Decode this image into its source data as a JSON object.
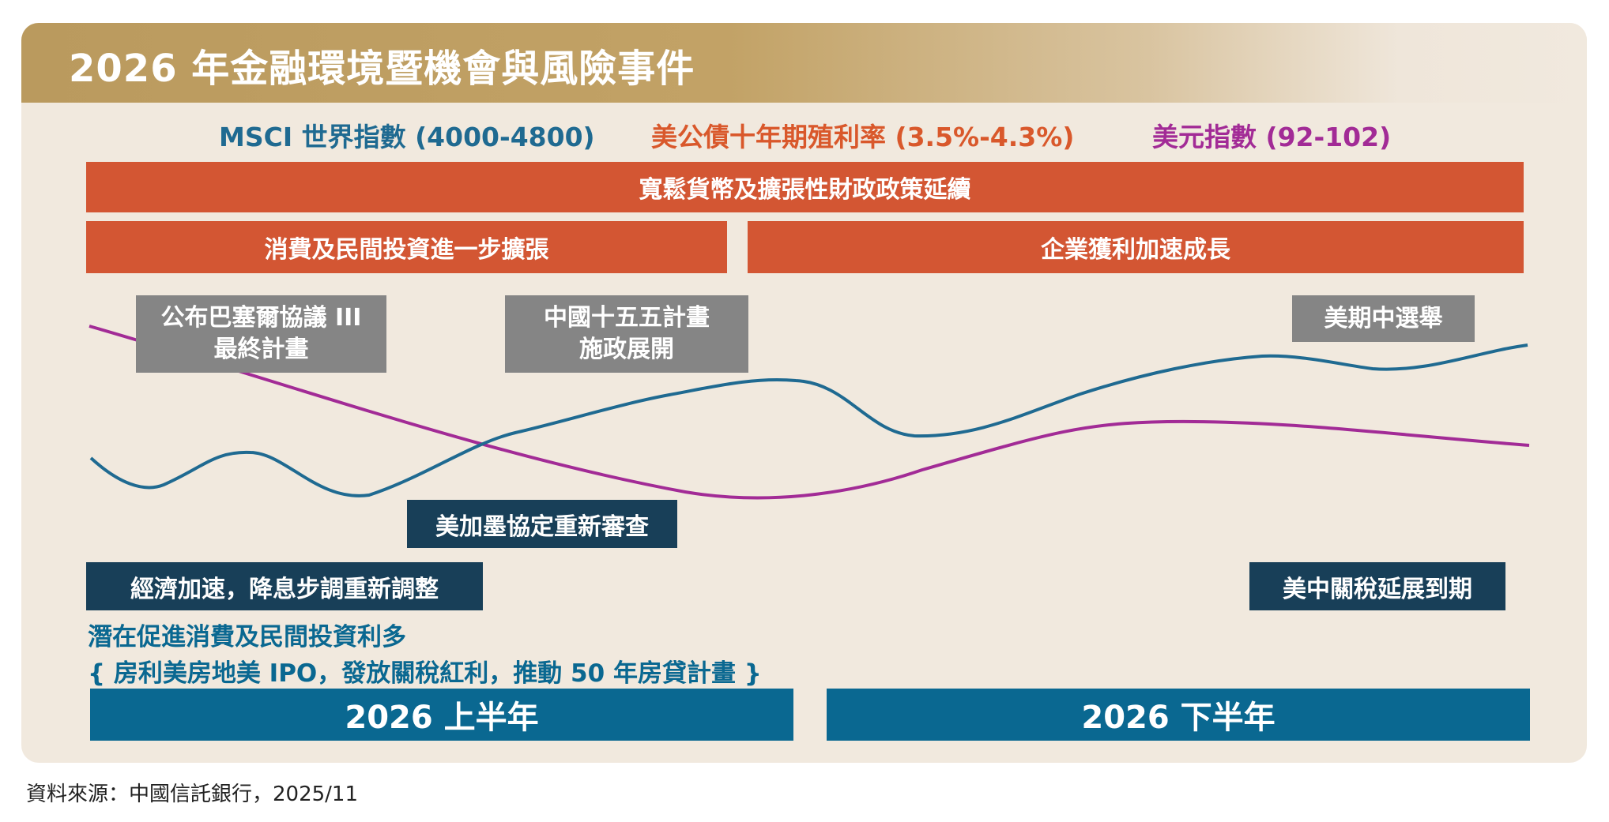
{
  "title": "2026 年金融環境暨機會與風險事件",
  "legend": [
    {
      "label": "MSCI 世界指數 (4000-4800)",
      "color": "#1f6a91"
    },
    {
      "label": "美公債十年期殖利率 (3.5%-4.3%)",
      "color": "#d9582b"
    },
    {
      "label": "美元指數 (92-102)",
      "color": "#a22b96"
    }
  ],
  "banners": {
    "top": "寬鬆貨幣及擴張性財政政策延續",
    "left": "消費及民間投資進一步擴張",
    "right": "企業獲利加速成長"
  },
  "events": {
    "basel_line1": "公布巴塞爾協議 III",
    "basel_line2": "最終計畫",
    "plan_line1": "中國十五五計畫",
    "plan_line2": "施政展開",
    "midterm": "美期中選舉",
    "usmca": "美加墨協定重新審查",
    "rates": "經濟加速，降息步調重新調整",
    "tariff": "美中關稅延展到期"
  },
  "notes": {
    "line1": "潛在促進消費及民間投資利多",
    "line2": "{ 房利美房地美 IPO，發放關稅紅利，推動 50 年房貸計畫 }"
  },
  "periods": {
    "h1": "2026 上半年",
    "h2": "2026 下半年"
  },
  "source": "資料來源：中國信託銀行，2025/11",
  "chart_data": {
    "type": "line",
    "x": [
      "2026 上半年",
      "2026 下半年"
    ],
    "series": [
      {
        "name": "MSCI 世界指數 (4000-4800)",
        "color": "#1f6a91"
      },
      {
        "name": "美元指數 (92-102)",
        "color": "#a22b96"
      }
    ],
    "notes": "Illustrative trend lines without a numeric axis."
  },
  "colors": {
    "orange": "#d35633",
    "grey": "#858585",
    "navy": "#183f58",
    "teal": "#0a6891",
    "msci": "#1f6a91",
    "usd": "#a22b96"
  }
}
